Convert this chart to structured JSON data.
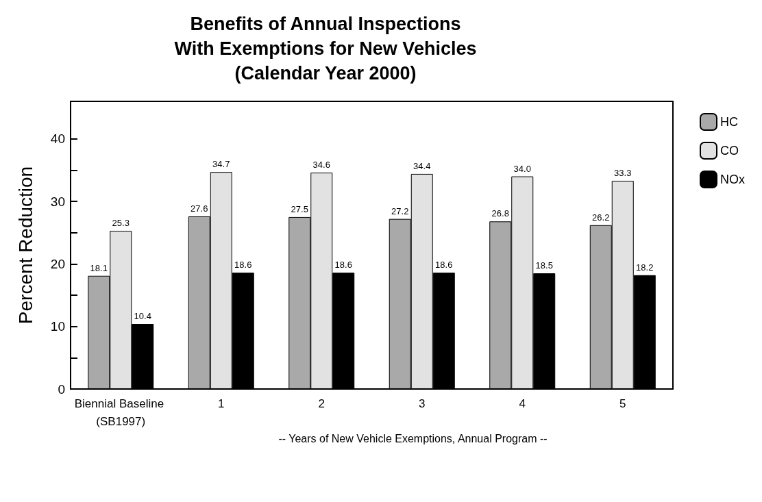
{
  "chart_data": {
    "type": "bar",
    "title": "Benefits of Annual Inspections\nWith Exemptions for New Vehicles\n(Calendar Year 2000)",
    "xlabel": "-- Years of New Vehicle Exemptions, Annual Program --",
    "ylabel": "Percent Reduction",
    "categories": [
      "Biennial Baseline (SB1997)",
      "1",
      "2",
      "3",
      "4",
      "5"
    ],
    "series": [
      {
        "name": "HC",
        "color": "#a9a9a9",
        "values": [
          18.1,
          27.6,
          27.5,
          27.2,
          26.8,
          26.2
        ],
        "value_labels": [
          "18.1",
          "27.6",
          "27.5",
          "27.2",
          "26.8",
          "26.2"
        ]
      },
      {
        "name": "CO",
        "color": "#e2e2e2",
        "values": [
          25.3,
          34.7,
          34.6,
          34.4,
          34.0,
          33.3
        ],
        "value_labels": [
          "25.3",
          "34.7",
          "34.6",
          "34.4",
          "34.0",
          "33.3"
        ]
      },
      {
        "name": "NOx",
        "color": "#000000",
        "values": [
          10.4,
          18.6,
          18.6,
          18.6,
          18.5,
          18.2
        ],
        "value_labels": [
          "10.4",
          "18.6",
          "18.6",
          "18.6",
          "18.5",
          "18.2"
        ]
      }
    ],
    "ylim": [
      0,
      46
    ],
    "yticks": [
      0,
      {
        "value": 5,
        "label": null
      },
      10,
      {
        "value": 15,
        "label": null
      },
      20,
      {
        "value": 25,
        "label": null
      },
      30,
      {
        "value": 35,
        "label": null
      },
      40
    ],
    "grid": false,
    "legend": "top right"
  }
}
